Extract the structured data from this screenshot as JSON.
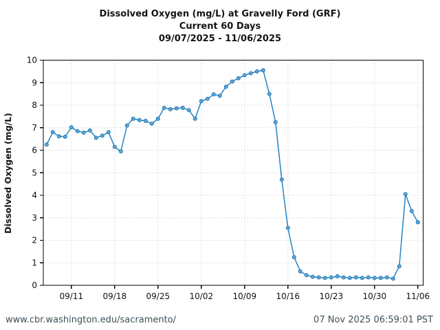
{
  "header": {
    "title_line1": "Dissolved Oxygen (mg/L) at Gravelly Ford (GRF)",
    "title_line2": "Current 60 Days",
    "title_line3": "09/07/2025 - 11/06/2025"
  },
  "footer": {
    "url": "www.cbr.washington.edu/sacramento/",
    "timestamp": "07 Nov 2025 06:59:01 PST"
  },
  "chart_data": {
    "type": "line",
    "title": "Dissolved Oxygen (mg/L) at Gravelly Ford (GRF)",
    "subtitle": "Current 60 Days",
    "date_range": "09/07/2025 - 11/06/2025",
    "ylabel": "Dissolved Oxygen (mg/L)",
    "xlabel": "",
    "ylim": [
      0,
      10
    ],
    "yticks": [
      0,
      1,
      2,
      3,
      4,
      5,
      6,
      7,
      8,
      9,
      10
    ],
    "grid": "dotted",
    "legend": "none",
    "line_color": "#2581c0",
    "marker_fill": "#5fa8d8",
    "marker_edge": "#1f77b4",
    "xtick_labels": [
      "09/11",
      "09/18",
      "09/25",
      "10/02",
      "10/09",
      "10/16",
      "10/23",
      "10/30",
      "11/06"
    ],
    "xtick_indices": [
      4,
      11,
      18,
      25,
      32,
      39,
      46,
      53,
      60
    ],
    "x": [
      "09/07",
      "09/08",
      "09/09",
      "09/10",
      "09/11",
      "09/12",
      "09/13",
      "09/14",
      "09/15",
      "09/16",
      "09/17",
      "09/18",
      "09/19",
      "09/20",
      "09/21",
      "09/22",
      "09/23",
      "09/24",
      "09/25",
      "09/26",
      "09/27",
      "09/28",
      "09/29",
      "09/30",
      "10/01",
      "10/02",
      "10/03",
      "10/04",
      "10/05",
      "10/06",
      "10/07",
      "10/08",
      "10/09",
      "10/10",
      "10/11",
      "10/12",
      "10/13",
      "10/14",
      "10/15",
      "10/16",
      "10/17",
      "10/18",
      "10/19",
      "10/20",
      "10/21",
      "10/22",
      "10/23",
      "10/24",
      "10/25",
      "10/26",
      "10/27",
      "10/28",
      "10/29",
      "10/30",
      "10/31",
      "11/01",
      "11/02",
      "11/03",
      "11/04",
      "11/05",
      "11/06"
    ],
    "values": [
      6.25,
      6.8,
      6.62,
      6.6,
      7.02,
      6.85,
      6.78,
      6.88,
      6.55,
      6.65,
      6.8,
      6.15,
      5.95,
      7.1,
      7.4,
      7.34,
      7.3,
      7.18,
      7.4,
      7.88,
      7.82,
      7.86,
      7.88,
      7.78,
      7.4,
      8.18,
      8.28,
      8.48,
      8.42,
      8.82,
      9.05,
      9.2,
      9.33,
      9.42,
      9.5,
      9.55,
      8.5,
      7.25,
      4.7,
      2.55,
      1.25,
      0.62,
      0.45,
      0.38,
      0.35,
      0.33,
      0.35,
      0.4,
      0.35,
      0.33,
      0.35,
      0.33,
      0.35,
      0.33,
      0.33,
      0.35,
      0.3,
      0.85,
      4.05,
      3.3,
      2.8
    ]
  }
}
